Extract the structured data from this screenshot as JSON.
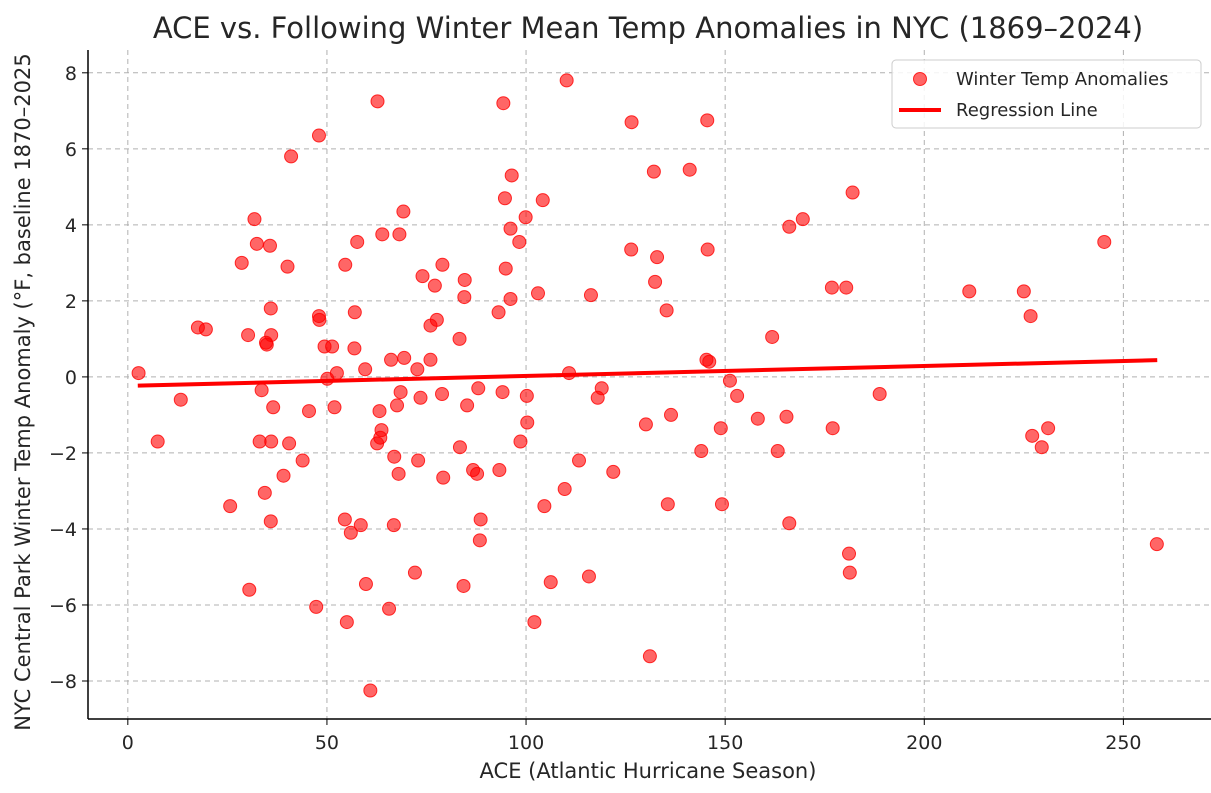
{
  "chart_data": {
    "type": "scatter",
    "title": "ACE vs. Following Winter Mean Temp Anomalies in NYC (1869–2024)",
    "xlabel": "ACE (Atlantic Hurricane Season)",
    "ylabel": "NYC Central Park Winter Temp Anomaly (°F, baseline 1870–2025",
    "xlim": [
      -10,
      272
    ],
    "ylim": [
      -9,
      8.6
    ],
    "xticks": [
      0,
      50,
      100,
      150,
      200,
      250
    ],
    "yticks": [
      -8,
      -6,
      -4,
      -2,
      0,
      2,
      4,
      6,
      8
    ],
    "ytick_labels": [
      "−8",
      "−6",
      "−4",
      "−2",
      "0",
      "2",
      "4",
      "6",
      "8"
    ],
    "grid": true,
    "legend_position": "top-right",
    "series": [
      {
        "name": "Winter Temp Anomalies",
        "kind": "scatter",
        "color": "#ff0000",
        "points": [
          [
            2.7,
            0.1
          ],
          [
            7.5,
            -1.7
          ],
          [
            13.3,
            -0.6
          ],
          [
            17.6,
            1.3
          ],
          [
            19.6,
            1.25
          ],
          [
            25.7,
            -3.4
          ],
          [
            28.6,
            3.0
          ],
          [
            30.2,
            1.1
          ],
          [
            30.5,
            -5.6
          ],
          [
            31.8,
            4.15
          ],
          [
            32.4,
            3.5
          ],
          [
            33.1,
            -1.7
          ],
          [
            33.6,
            -0.35
          ],
          [
            34.4,
            -3.05
          ],
          [
            34.7,
            0.9
          ],
          [
            34.9,
            0.85
          ],
          [
            35.7,
            3.45
          ],
          [
            35.9,
            1.8
          ],
          [
            36.0,
            -1.7
          ],
          [
            36.0,
            1.1
          ],
          [
            35.9,
            -3.8
          ],
          [
            36.5,
            -0.8
          ],
          [
            39.1,
            -2.6
          ],
          [
            40.1,
            2.9
          ],
          [
            40.5,
            -1.75
          ],
          [
            41.0,
            5.8
          ],
          [
            43.9,
            -2.2
          ],
          [
            45.5,
            -0.9
          ],
          [
            47.3,
            -6.05
          ],
          [
            48.0,
            6.35
          ],
          [
            48.0,
            1.6
          ],
          [
            48.1,
            1.5
          ],
          [
            49.4,
            0.8
          ],
          [
            50.1,
            -0.05
          ],
          [
            51.3,
            0.8
          ],
          [
            51.9,
            -0.8
          ],
          [
            52.5,
            0.1
          ],
          [
            54.5,
            -3.75
          ],
          [
            54.6,
            2.95
          ],
          [
            55.0,
            -6.45
          ],
          [
            56.0,
            -4.1
          ],
          [
            56.9,
            0.75
          ],
          [
            57.0,
            1.7
          ],
          [
            57.6,
            3.55
          ],
          [
            58.5,
            -3.9
          ],
          [
            59.6,
            0.2
          ],
          [
            59.8,
            -5.45
          ],
          [
            60.9,
            -8.25
          ],
          [
            62.6,
            -1.75
          ],
          [
            62.7,
            7.25
          ],
          [
            63.2,
            -0.9
          ],
          [
            63.4,
            -1.6
          ],
          [
            63.7,
            -1.4
          ],
          [
            63.9,
            3.75
          ],
          [
            65.6,
            -6.1
          ],
          [
            66.1,
            0.45
          ],
          [
            66.8,
            -3.9
          ],
          [
            66.9,
            -2.1
          ],
          [
            67.6,
            -0.75
          ],
          [
            68.0,
            -2.55
          ],
          [
            68.2,
            3.75
          ],
          [
            68.5,
            -0.4
          ],
          [
            69.2,
            4.35
          ],
          [
            69.4,
            0.5
          ],
          [
            72.1,
            -5.15
          ],
          [
            72.7,
            0.2
          ],
          [
            72.9,
            -2.2
          ],
          [
            73.5,
            -0.55
          ],
          [
            74.0,
            2.65
          ],
          [
            76.0,
            0.45
          ],
          [
            76.0,
            1.35
          ],
          [
            77.1,
            2.4
          ],
          [
            77.6,
            1.5
          ],
          [
            78.9,
            -0.45
          ],
          [
            79.0,
            2.95
          ],
          [
            79.2,
            -2.65
          ],
          [
            83.3,
            1.0
          ],
          [
            83.4,
            -1.85
          ],
          [
            84.3,
            -5.5
          ],
          [
            84.5,
            2.1
          ],
          [
            84.6,
            2.55
          ],
          [
            85.2,
            -0.75
          ],
          [
            86.7,
            -2.45
          ],
          [
            87.7,
            -2.55
          ],
          [
            88.0,
            -0.3
          ],
          [
            88.4,
            -4.3
          ],
          [
            88.6,
            -3.75
          ],
          [
            93.1,
            1.7
          ],
          [
            93.3,
            -2.45
          ],
          [
            94.1,
            -0.4
          ],
          [
            94.3,
            7.2
          ],
          [
            94.7,
            4.7
          ],
          [
            94.9,
            2.85
          ],
          [
            96.1,
            2.05
          ],
          [
            96.1,
            3.9
          ],
          [
            96.4,
            5.3
          ],
          [
            98.3,
            3.55
          ],
          [
            98.6,
            -1.7
          ],
          [
            99.9,
            4.2
          ],
          [
            100.2,
            -0.5
          ],
          [
            100.3,
            -1.2
          ],
          [
            102.1,
            -6.45
          ],
          [
            103.0,
            2.2
          ],
          [
            104.2,
            4.65
          ],
          [
            104.6,
            -3.4
          ],
          [
            106.2,
            -5.4
          ],
          [
            109.7,
            -2.95
          ],
          [
            110.2,
            7.8
          ],
          [
            110.8,
            0.1
          ],
          [
            113.3,
            -2.2
          ],
          [
            115.8,
            -5.25
          ],
          [
            116.3,
            2.15
          ],
          [
            118.0,
            -0.55
          ],
          [
            119.0,
            -0.3
          ],
          [
            121.9,
            -2.5
          ],
          [
            126.4,
            3.35
          ],
          [
            126.5,
            6.7
          ],
          [
            130.1,
            -1.25
          ],
          [
            131.1,
            -7.35
          ],
          [
            132.1,
            5.4
          ],
          [
            132.4,
            2.5
          ],
          [
            132.9,
            3.15
          ],
          [
            135.3,
            1.75
          ],
          [
            135.6,
            -3.35
          ],
          [
            136.4,
            -1.0
          ],
          [
            141.1,
            5.45
          ],
          [
            144.0,
            -1.95
          ],
          [
            145.3,
            0.45
          ],
          [
            145.5,
            6.75
          ],
          [
            145.6,
            3.35
          ],
          [
            146.0,
            0.4
          ],
          [
            148.9,
            -1.35
          ],
          [
            149.2,
            -3.35
          ],
          [
            151.2,
            -0.1
          ],
          [
            153.0,
            -0.5
          ],
          [
            158.2,
            -1.1
          ],
          [
            161.8,
            1.05
          ],
          [
            163.2,
            -1.95
          ],
          [
            165.4,
            -1.05
          ],
          [
            166.1,
            -3.85
          ],
          [
            166.1,
            3.95
          ],
          [
            169.5,
            4.15
          ],
          [
            176.8,
            2.35
          ],
          [
            177.0,
            -1.35
          ],
          [
            180.4,
            2.35
          ],
          [
            181.1,
            -4.65
          ],
          [
            181.3,
            -5.15
          ],
          [
            182.0,
            4.85
          ],
          [
            188.8,
            -0.45
          ],
          [
            211.3,
            2.25
          ],
          [
            225.0,
            2.25
          ],
          [
            226.7,
            1.6
          ],
          [
            227.1,
            -1.55
          ],
          [
            229.5,
            -1.85
          ],
          [
            231.1,
            -1.35
          ],
          [
            245.2,
            3.55
          ],
          [
            258.4,
            -4.4
          ]
        ]
      },
      {
        "name": "Regression Line",
        "kind": "line",
        "color": "#ff0000",
        "x": [
          2.5,
          258.5
        ],
        "y": [
          -0.23,
          0.44
        ]
      }
    ]
  }
}
